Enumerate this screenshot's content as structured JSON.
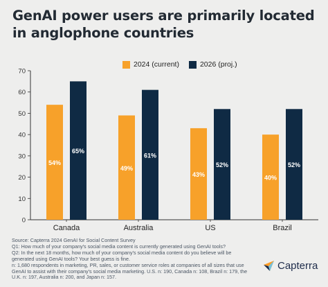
{
  "title": "GenAI power users are primarily located in anglophone countries",
  "legend": [
    {
      "label": "2024 (current)",
      "color": "#f7a12a"
    },
    {
      "label": "2026 (proj.)",
      "color": "#0f2a44"
    }
  ],
  "chart_data": {
    "type": "bar",
    "title": "GenAI power users are primarily located in anglophone countries",
    "categories": [
      "Canada",
      "Australia",
      "US",
      "Brazil"
    ],
    "series": [
      {
        "name": "2024 (current)",
        "values": [
          54,
          49,
          43,
          40
        ],
        "labels": [
          "54%",
          "49%",
          "43%",
          "40%"
        ],
        "color": "#f7a12a"
      },
      {
        "name": "2026 (proj.)",
        "values": [
          65,
          61,
          52,
          52
        ],
        "labels": [
          "65%",
          "61%",
          "52%",
          "52%"
        ],
        "color": "#0f2a44"
      }
    ],
    "yticks": [
      0,
      10,
      20,
      30,
      40,
      50,
      60,
      70
    ],
    "ylim": [
      0,
      70
    ],
    "xlabel": "",
    "ylabel": "",
    "grid": false,
    "legend_position": "top"
  },
  "footer": {
    "lines": [
      "Source: Capterra 2024 GenAI for Social Content Survey",
      "Q1: How much of your company's social media content is currently generated using GenAI tools?",
      "Q2: In the next 18 months, how much of your company's social media content do you believe will be generated using GenAI tools? Your best guess is fine.",
      "n: 1,680 respondents in marketing, PR, sales, or customer service roles at companies of all sizes that use GenAI to assist with their company's social media marketing. U.S. n: 190, Canada n: 108, Brazil n: 179, the U.K. n: 197, Australia n: 200, and Japan n: 157."
    ]
  },
  "logo": {
    "text": "Capterra",
    "icon": "capterra-arrow-icon"
  }
}
